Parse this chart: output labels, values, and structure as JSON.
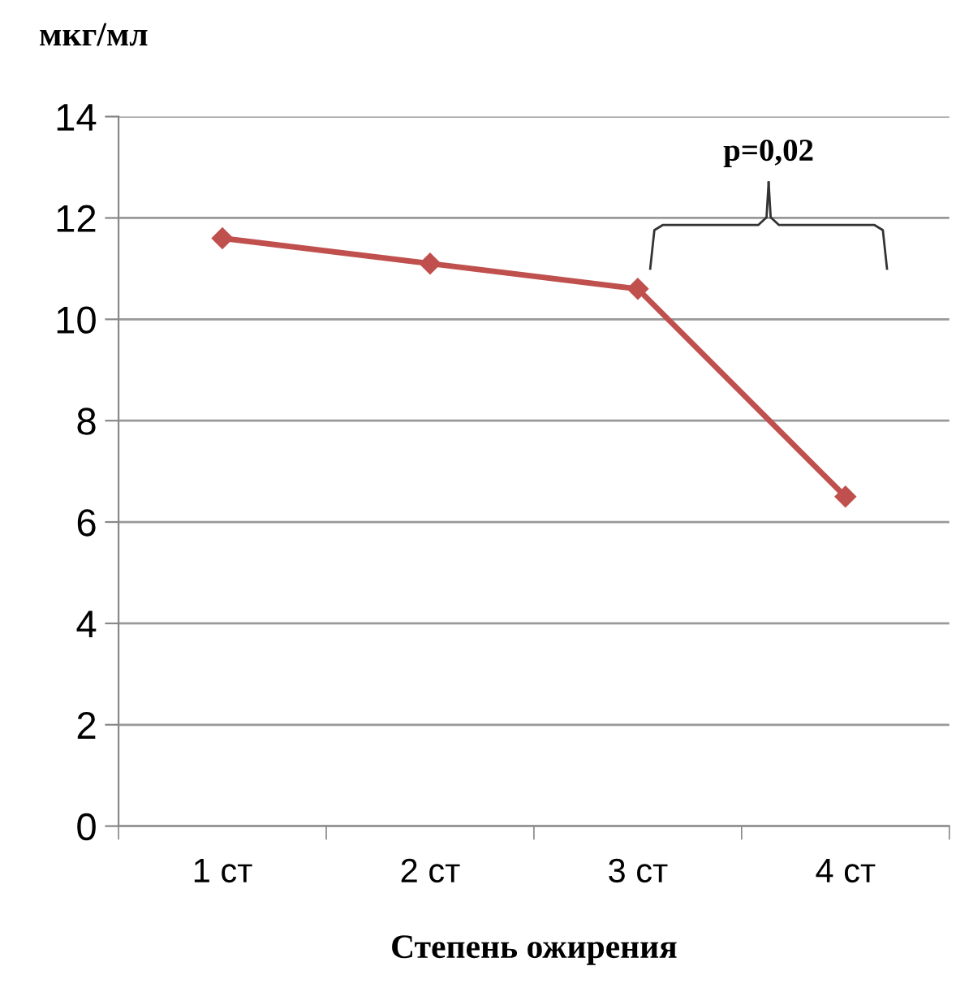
{
  "chart_data": {
    "type": "line",
    "ylabel": "мкг/мл",
    "xlabel": "Степень ожирения",
    "categories": [
      "1 ст",
      "2 ст",
      "3 ст",
      "4 ст"
    ],
    "series": [
      {
        "color": "#c0504d",
        "values": [
          11.6,
          11.1,
          10.6,
          6.5
        ]
      }
    ],
    "ylim": [
      0,
      14
    ],
    "yticks": [
      0,
      2,
      4,
      6,
      8,
      10,
      12,
      14
    ],
    "grid": "y",
    "marker": "diamond",
    "line_style": "solid",
    "annotations": [
      "p=0,02"
    ]
  }
}
